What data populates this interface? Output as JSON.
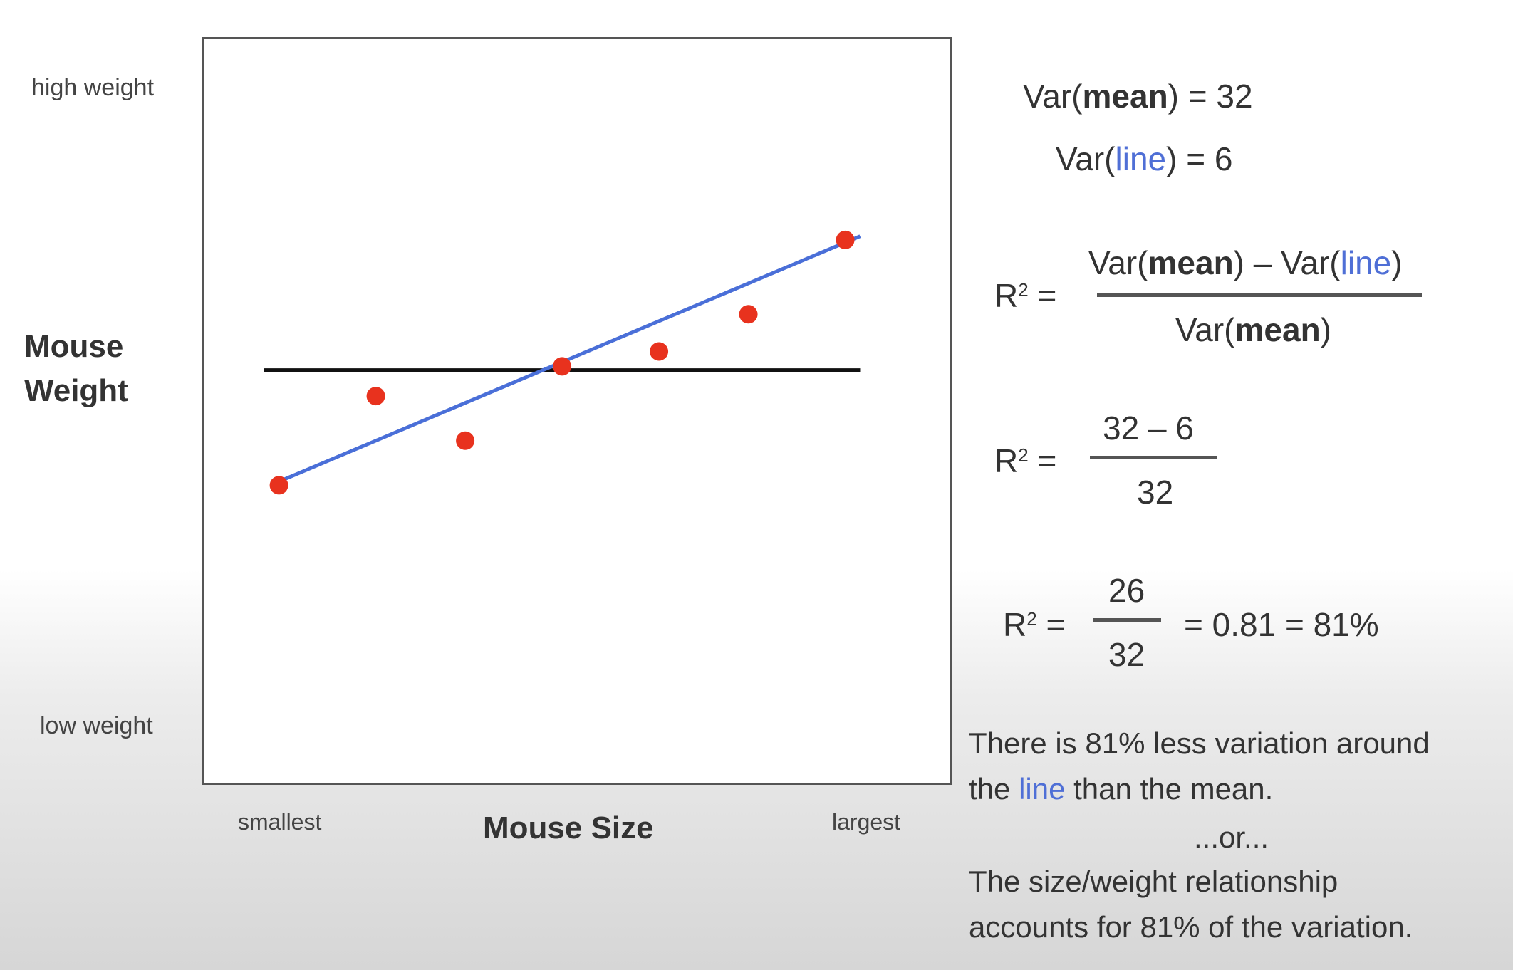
{
  "chart_data": {
    "type": "scatter",
    "xlabel": "Mouse Size",
    "ylabel_line1": "Mouse",
    "ylabel_line2": "Weight",
    "x_tick_left": "smallest",
    "x_tick_right": "largest",
    "y_tick_top": "high weight",
    "y_tick_bottom": "low weight",
    "xlim": [
      0,
      1
    ],
    "ylim": [
      0,
      1
    ],
    "points": [
      {
        "x": 0.1,
        "y": 0.4
      },
      {
        "x": 0.23,
        "y": 0.52
      },
      {
        "x": 0.35,
        "y": 0.46
      },
      {
        "x": 0.48,
        "y": 0.56
      },
      {
        "x": 0.61,
        "y": 0.58
      },
      {
        "x": 0.73,
        "y": 0.63
      },
      {
        "x": 0.86,
        "y": 0.73
      }
    ],
    "mean_line": {
      "x0": 0.08,
      "x1": 0.88,
      "y": 0.555
    },
    "fit_line": {
      "x0": 0.1,
      "y0": 0.405,
      "x1": 0.88,
      "y1": 0.735
    },
    "colors": {
      "points": "#e8321e",
      "fit_line": "#4a6fd8",
      "mean_line": "#111111"
    }
  },
  "equations": {
    "var_mean": {
      "prefix": "Var(",
      "bold": "mean",
      "suffix": ") = 32"
    },
    "var_line": {
      "prefix": "Var(",
      "blue": "line",
      "suffix": ") = 6"
    },
    "r2_label": "R",
    "r2_sup": "2",
    "r2_eq": " =",
    "formula_num": {
      "a": "Var(",
      "b": "mean",
      "c": ") – Var(",
      "d": "line",
      "e": ")"
    },
    "formula_den": {
      "a": "Var(",
      "b": "mean",
      "c": ")"
    },
    "step2_num": "32 – 6",
    "step2_den": "32",
    "step3_num": "26",
    "step3_den": "32",
    "step3_result": "= 0.81 = 81%"
  },
  "text": {
    "line1": "There is 81% less variation around",
    "line2_a": "the ",
    "line2_blue": "line",
    "line2_b": " than the mean.",
    "or": "...or...",
    "line3": "The size/weight relationship",
    "line4": "accounts for 81% of the variation."
  }
}
